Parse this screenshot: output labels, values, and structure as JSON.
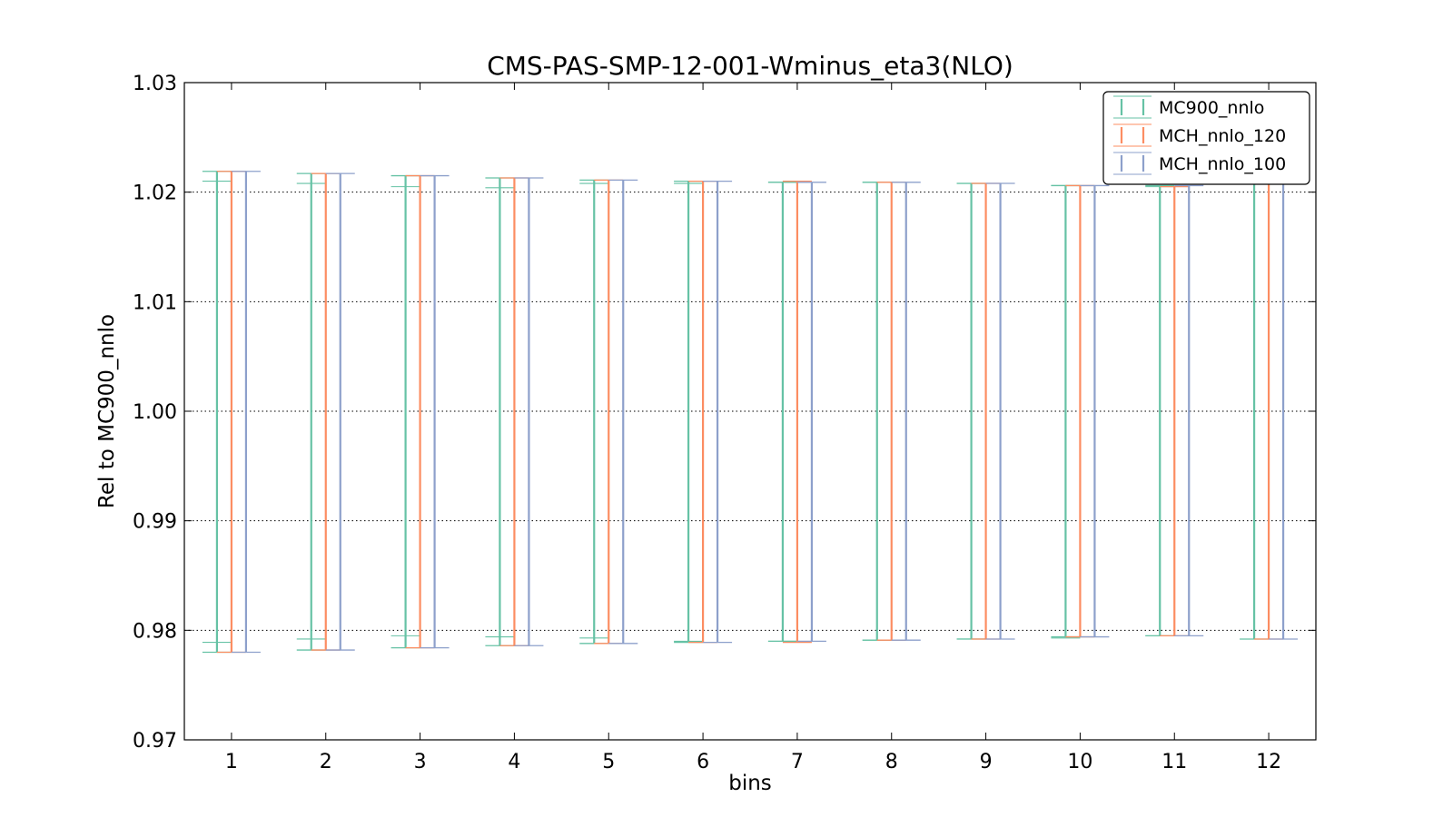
{
  "chart_data": {
    "type": "errorbar",
    "title": "CMS-PAS-SMP-12-001-Wminus_eta3(NLO)",
    "xlabel": "bins",
    "ylabel": "Rel to MC900_nnlo",
    "categories": [
      "1",
      "2",
      "3",
      "4",
      "5",
      "6",
      "7",
      "8",
      "9",
      "10",
      "11",
      "12"
    ],
    "xlim": [
      0.5,
      12.5
    ],
    "ylim": [
      0.97,
      1.03
    ],
    "yticks": [
      "0.97",
      "0.98",
      "0.99",
      "1.00",
      "1.01",
      "1.02",
      "1.03"
    ],
    "grid": "horizontal dotted",
    "legend_position": "top-right",
    "series": [
      {
        "name": "MC900_nnlo",
        "color": "#66c2a5",
        "upper": [
          1.0219,
          1.0217,
          1.0215,
          1.0213,
          1.0211,
          1.021,
          1.0209,
          1.0209,
          1.0208,
          1.0206,
          1.0206,
          1.0208
        ],
        "lower": [
          0.978,
          0.9782,
          0.9784,
          0.9786,
          0.9788,
          0.9789,
          0.979,
          0.9791,
          0.9792,
          0.9794,
          0.9795,
          0.9792
        ],
        "inner_upper": [
          1.021,
          1.0208,
          1.0205,
          1.0204,
          1.0208,
          1.0208,
          1.0209,
          1.0209,
          1.0208,
          1.0206,
          1.0205,
          null
        ],
        "inner_lower": [
          0.9789,
          0.9792,
          0.9795,
          0.9794,
          0.9793,
          0.979,
          0.979,
          0.9791,
          0.9792,
          0.9793,
          0.9795,
          null
        ]
      },
      {
        "name": "MCH_nnlo_120",
        "color": "#fc8d62",
        "upper": [
          1.0219,
          1.0217,
          1.0215,
          1.0213,
          1.0211,
          1.021,
          1.021,
          1.0209,
          1.0208,
          1.0206,
          1.0205,
          1.0208
        ],
        "lower": [
          0.978,
          0.9782,
          0.9784,
          0.9786,
          0.9788,
          0.9789,
          0.9789,
          0.9791,
          0.9792,
          0.9794,
          0.9795,
          0.9792
        ]
      },
      {
        "name": "MCH_nnlo_100",
        "color": "#8da0cb",
        "upper": [
          1.0219,
          1.0217,
          1.0215,
          1.0213,
          1.0211,
          1.021,
          1.0209,
          1.0209,
          1.0208,
          1.0206,
          1.0206,
          1.0208
        ],
        "lower": [
          0.978,
          0.9782,
          0.9784,
          0.9786,
          0.9788,
          0.9789,
          0.979,
          0.9791,
          0.9792,
          0.9794,
          0.9795,
          0.9792
        ]
      }
    ]
  }
}
